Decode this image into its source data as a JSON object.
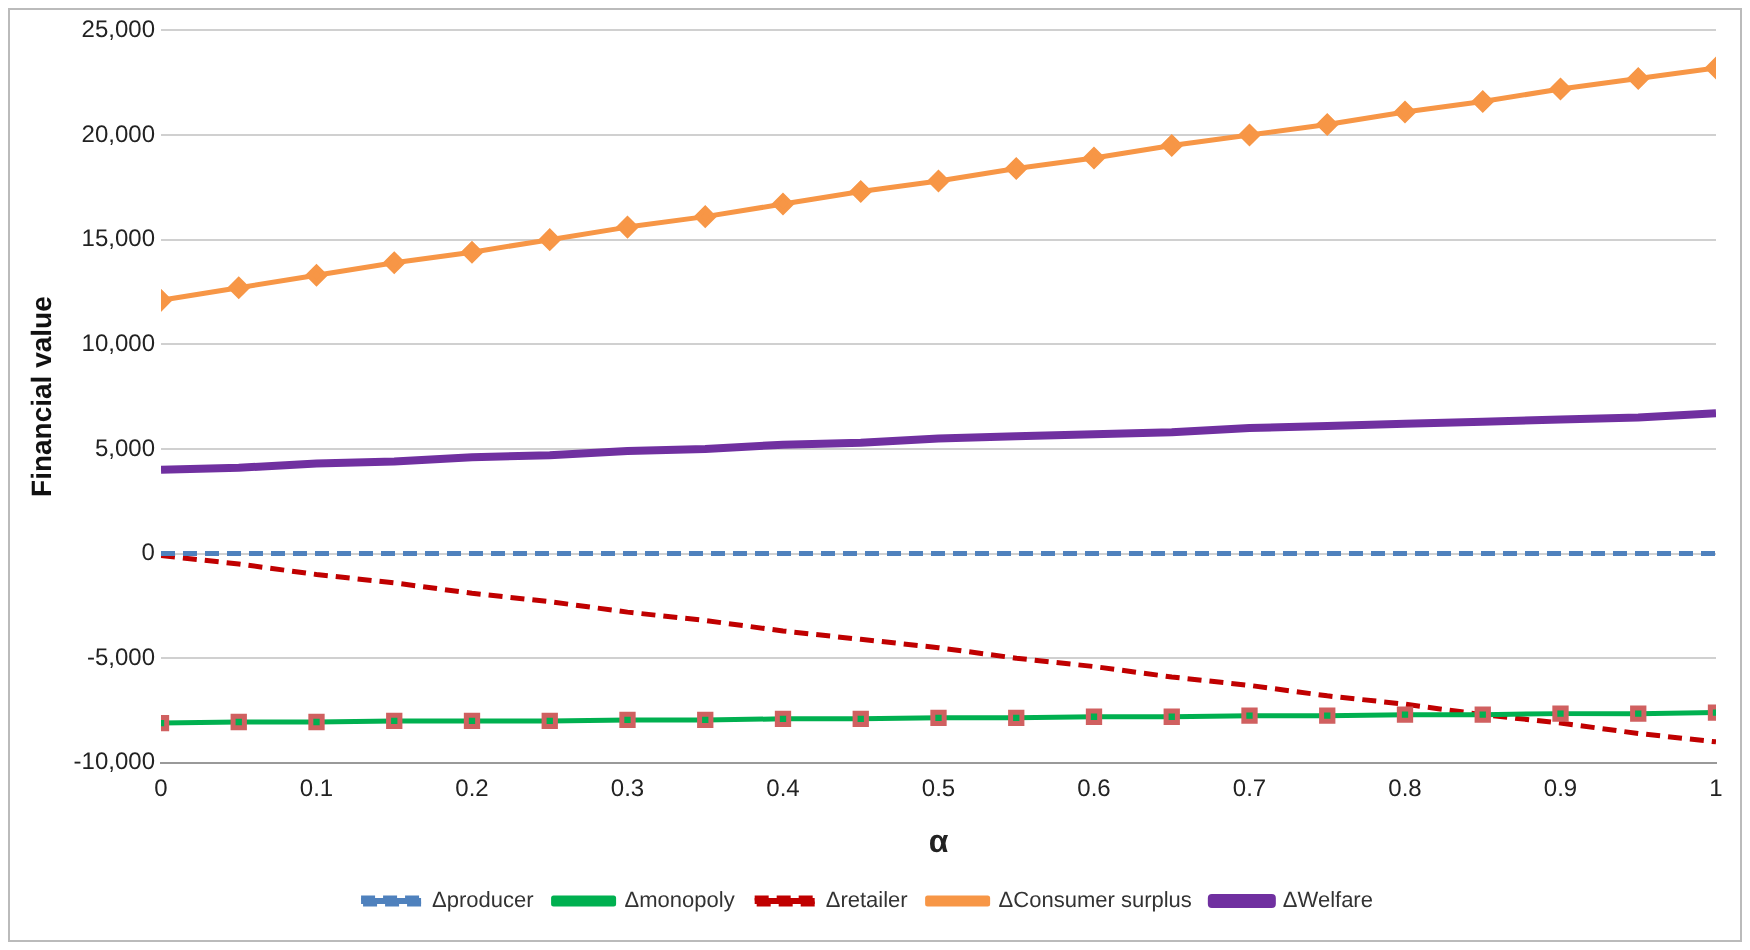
{
  "chart_data": {
    "type": "line",
    "xlabel": "α",
    "ylabel": "Financial value",
    "x": [
      0,
      0.05,
      0.1,
      0.15,
      0.2,
      0.25,
      0.3,
      0.35,
      0.4,
      0.45,
      0.5,
      0.55,
      0.6,
      0.65,
      0.7,
      0.75,
      0.8,
      0.85,
      0.9,
      0.95,
      1
    ],
    "xlim": [
      0,
      1
    ],
    "xticks": [
      0,
      0.1,
      0.2,
      0.3,
      0.4,
      0.5,
      0.6,
      0.7,
      0.8,
      0.9,
      1
    ],
    "ylim": [
      -10000,
      25000
    ],
    "yticks": [
      {
        "value": -10000,
        "label": "-10,000"
      },
      {
        "value": -5000,
        "label": "-5,000"
      },
      {
        "value": 0,
        "label": "0"
      },
      {
        "value": 5000,
        "label": "5,000"
      },
      {
        "value": 10000,
        "label": "10,000"
      },
      {
        "value": 15000,
        "label": "15,000"
      },
      {
        "value": 20000,
        "label": "20,000"
      },
      {
        "value": 25000,
        "label": "25,000"
      }
    ],
    "grid": "y",
    "legend": "bottom",
    "series": [
      {
        "name": "Δproducer",
        "color": "#4f81bd",
        "line_style": "dashed",
        "marker": "none",
        "values": [
          0,
          0,
          0,
          0,
          0,
          0,
          0,
          0,
          0,
          0,
          0,
          0,
          0,
          0,
          0,
          0,
          0,
          0,
          0,
          0,
          0
        ]
      },
      {
        "name": "Δmonopoly",
        "color": "#00b050",
        "line_style": "solid",
        "marker": "square",
        "values": [
          -8100,
          -8050,
          -8050,
          -8000,
          -8000,
          -8000,
          -7950,
          -7950,
          -7900,
          -7900,
          -7850,
          -7850,
          -7800,
          -7800,
          -7750,
          -7750,
          -7700,
          -7700,
          -7650,
          -7650,
          -7600
        ]
      },
      {
        "name": "Δretailer",
        "color": "#c00000",
        "line_style": "dashed",
        "marker": "none",
        "values": [
          -100,
          -500,
          -1000,
          -1400,
          -1900,
          -2300,
          -2800,
          -3200,
          -3700,
          -4100,
          -4500,
          -5000,
          -5400,
          -5900,
          -6300,
          -6800,
          -7200,
          -7700,
          -8100,
          -8600,
          -9000
        ]
      },
      {
        "name": "ΔConsumer surplus",
        "color": "#f79646",
        "line_style": "solid",
        "marker": "diamond",
        "values": [
          12100,
          12700,
          13300,
          13900,
          14400,
          15000,
          15600,
          16100,
          16700,
          17300,
          17800,
          18400,
          18900,
          19500,
          20000,
          20500,
          21100,
          21600,
          22200,
          22700,
          23200
        ]
      },
      {
        "name": "ΔWelfare",
        "color": "#7030a0",
        "line_style": "solid",
        "marker": "none",
        "values": [
          4000,
          4100,
          4300,
          4400,
          4600,
          4700,
          4900,
          5000,
          5200,
          5300,
          5500,
          5600,
          5700,
          5800,
          6000,
          6100,
          6200,
          6300,
          6400,
          6500,
          6700
        ]
      }
    ]
  }
}
